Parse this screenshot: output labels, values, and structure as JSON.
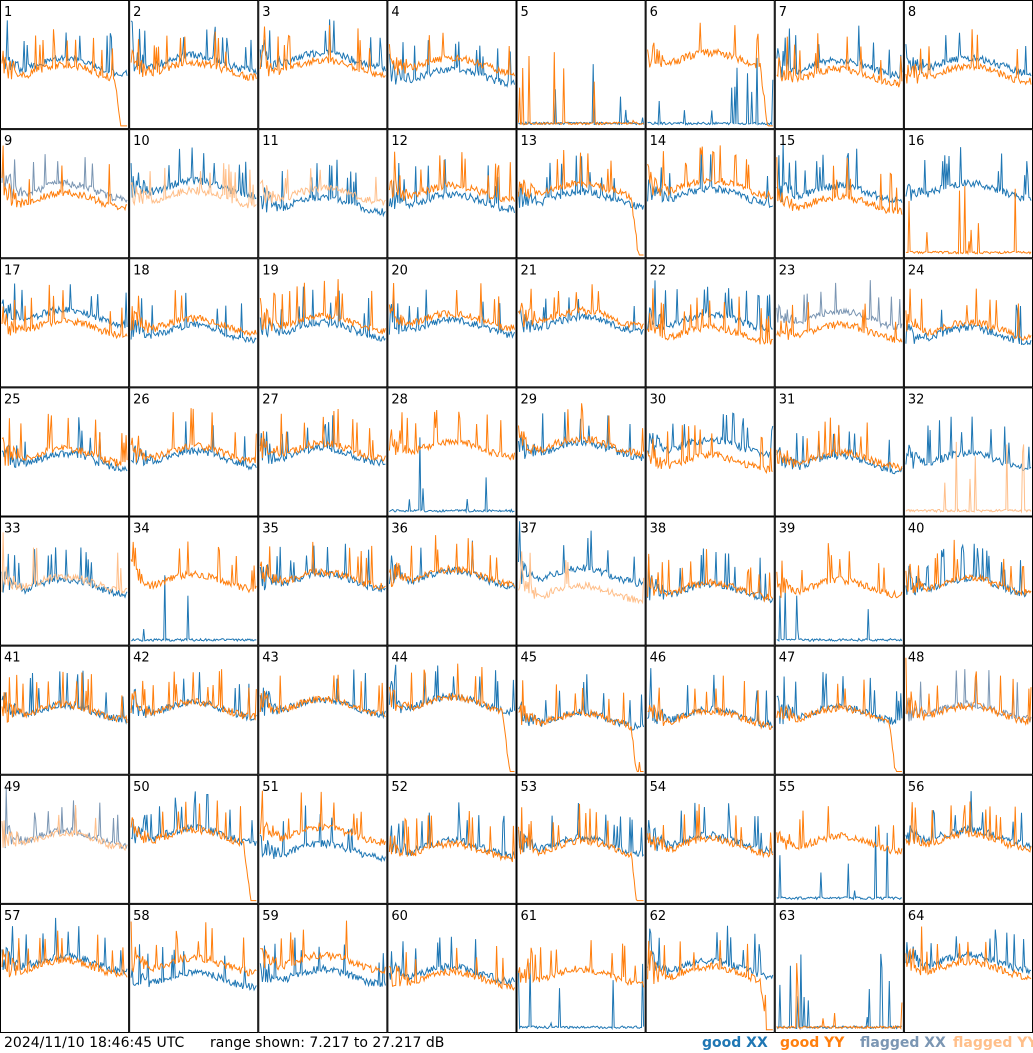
{
  "chart_data": {
    "type": "line",
    "panel_count": 64,
    "panel_labels": [
      "1",
      "2",
      "3",
      "4",
      "5",
      "6",
      "7",
      "8",
      "9",
      "10",
      "11",
      "12",
      "13",
      "14",
      "15",
      "16",
      "17",
      "18",
      "19",
      "20",
      "21",
      "22",
      "23",
      "24",
      "25",
      "26",
      "27",
      "28",
      "29",
      "30",
      "31",
      "32",
      "33",
      "34",
      "35",
      "36",
      "37",
      "38",
      "39",
      "40",
      "41",
      "42",
      "43",
      "44",
      "45",
      "46",
      "47",
      "48",
      "49",
      "50",
      "51",
      "52",
      "53",
      "54",
      "55",
      "56",
      "57",
      "58",
      "59",
      "60",
      "61",
      "62",
      "63",
      "64"
    ],
    "grid": {
      "rows": 8,
      "cols": 8
    },
    "ylim": [
      7.217,
      27.217
    ],
    "y_unit": "dB",
    "series": [
      {
        "name": "good XX",
        "color": "#1f77b4"
      },
      {
        "name": "good YY",
        "color": "#ff7f0e"
      },
      {
        "name": "flagged XX",
        "color": "#7b96b3"
      },
      {
        "name": "flagged YY",
        "color": "#ffbf8a"
      }
    ],
    "panel_status": {
      "flagged_xx": [
        9,
        23,
        48,
        49
      ],
      "flagged_yy": [
        10,
        11,
        32,
        33,
        37,
        49
      ],
      "xx_low_panels": [
        5,
        6,
        28,
        34,
        39,
        55,
        61,
        63
      ],
      "yy_low_panels": [
        5,
        16,
        32,
        63
      ],
      "yy_dropout_panels": [
        1,
        6,
        13,
        44,
        45,
        47,
        50,
        53,
        62
      ]
    }
  },
  "footer": {
    "timestamp": "2024/11/10 18:46:45 UTC",
    "range_text": "range shown: 7.217 to 27.217 dB",
    "legend": {
      "good_xx": "good XX",
      "good_yy": "good YY",
      "flagged_xx": "flagged XX",
      "flagged_yy": "flagged YY"
    },
    "colors": {
      "good_xx": "#1f77b4",
      "good_yy": "#ff7f0e",
      "flagged_xx": "#7b96b3",
      "flagged_yy": "#ffbf8a"
    }
  }
}
